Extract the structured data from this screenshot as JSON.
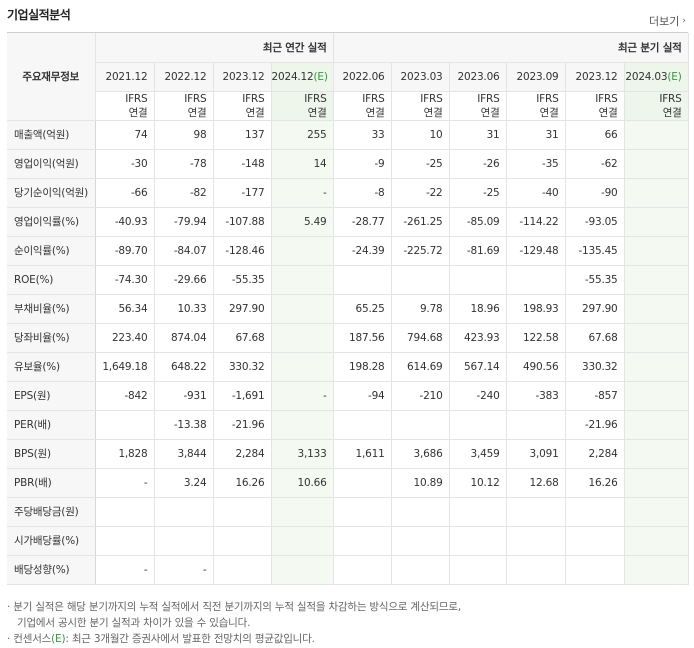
{
  "title": "기업실적분석",
  "more_label": "더보기",
  "header": {
    "row_label": "주요재무정보",
    "annual_label": "최근 연간 실적",
    "quarter_label": "최근 분기 실적",
    "ifrs_top": "IFRS",
    "ifrs_bottom": "연결",
    "annual_periods": [
      {
        "label": "2021.12",
        "est": ""
      },
      {
        "label": "2022.12",
        "est": ""
      },
      {
        "label": "2023.12",
        "est": ""
      },
      {
        "label": "2024.12",
        "est": "(E)"
      }
    ],
    "quarter_periods": [
      {
        "label": "2022.06",
        "est": ""
      },
      {
        "label": "2023.03",
        "est": ""
      },
      {
        "label": "2023.06",
        "est": ""
      },
      {
        "label": "2023.09",
        "est": ""
      },
      {
        "label": "2023.12",
        "est": ""
      },
      {
        "label": "2024.03",
        "est": "(E)"
      }
    ]
  },
  "rows": [
    {
      "label": "매출액(억원)",
      "values": [
        "74",
        "98",
        "137",
        "255",
        "33",
        "10",
        "31",
        "31",
        "66",
        ""
      ]
    },
    {
      "label": "영업이익(억원)",
      "values": [
        "-30",
        "-78",
        "-148",
        "14",
        "-9",
        "-25",
        "-26",
        "-35",
        "-62",
        ""
      ]
    },
    {
      "label": "당기순이익(억원)",
      "values": [
        "-66",
        "-82",
        "-177",
        "-",
        "-8",
        "-22",
        "-25",
        "-40",
        "-90",
        ""
      ]
    },
    {
      "label": "영업이익률(%)",
      "values": [
        "-40.93",
        "-79.94",
        "-107.88",
        "5.49",
        "-28.77",
        "-261.25",
        "-85.09",
        "-114.22",
        "-93.05",
        ""
      ]
    },
    {
      "label": "순이익률(%)",
      "values": [
        "-89.70",
        "-84.07",
        "-128.46",
        "",
        "-24.39",
        "-225.72",
        "-81.69",
        "-129.48",
        "-135.45",
        ""
      ]
    },
    {
      "label": "ROE(%)",
      "values": [
        "-74.30",
        "-29.66",
        "-55.35",
        "",
        "",
        "",
        "",
        "",
        "-55.35",
        ""
      ]
    },
    {
      "label": "부채비율(%)",
      "values": [
        "56.34",
        "10.33",
        "297.90",
        "",
        "65.25",
        "9.78",
        "18.96",
        "198.93",
        "297.90",
        ""
      ]
    },
    {
      "label": "당좌비율(%)",
      "values": [
        "223.40",
        "874.04",
        "67.68",
        "",
        "187.56",
        "794.68",
        "423.93",
        "122.58",
        "67.68",
        ""
      ]
    },
    {
      "label": "유보율(%)",
      "values": [
        "1,649.18",
        "648.22",
        "330.32",
        "",
        "198.28",
        "614.69",
        "567.14",
        "490.56",
        "330.32",
        ""
      ]
    },
    {
      "label": "EPS(원)",
      "values": [
        "-842",
        "-931",
        "-1,691",
        "-",
        "-94",
        "-210",
        "-240",
        "-383",
        "-857",
        ""
      ]
    },
    {
      "label": "PER(배)",
      "values": [
        "",
        "-13.38",
        "-21.96",
        "",
        "",
        "",
        "",
        "",
        "-21.96",
        ""
      ]
    },
    {
      "label": "BPS(원)",
      "values": [
        "1,828",
        "3,844",
        "2,284",
        "3,133",
        "1,611",
        "3,686",
        "3,459",
        "3,091",
        "2,284",
        ""
      ]
    },
    {
      "label": "PBR(배)",
      "values": [
        "-",
        "3.24",
        "16.26",
        "10.66",
        "",
        "10.89",
        "10.12",
        "12.68",
        "16.26",
        ""
      ]
    },
    {
      "label": "주당배당금(원)",
      "values": [
        "",
        "",
        "",
        "",
        "",
        "",
        "",
        "",
        "",
        ""
      ]
    },
    {
      "label": "시가배당률(%)",
      "values": [
        "",
        "",
        "",
        "",
        "",
        "",
        "",
        "",
        "",
        ""
      ]
    },
    {
      "label": "배당성향(%)",
      "values": [
        "-",
        "-",
        "",
        "",
        "",
        "",
        "",
        "",
        "",
        ""
      ]
    }
  ],
  "notes": {
    "line1": "· 분기 실적은 해당 분기까지의 누적 실적에서 직전 분기까지의 누적 실적을 차감하는 방식으로 계산되므로,",
    "line2": "기업에서 공시한 분기 실적과 차이가 있을 수 있습니다.",
    "line3_pre": "· 컨센서스",
    "line3_e": "(E)",
    "line3_post": ": 최근 3개월간 증권사에서 발표한 전망치의 평균값입니다."
  },
  "colors": {
    "negative": "#e0212b",
    "estimate": "#2e9d3c",
    "ifrs": "#e86d16"
  }
}
